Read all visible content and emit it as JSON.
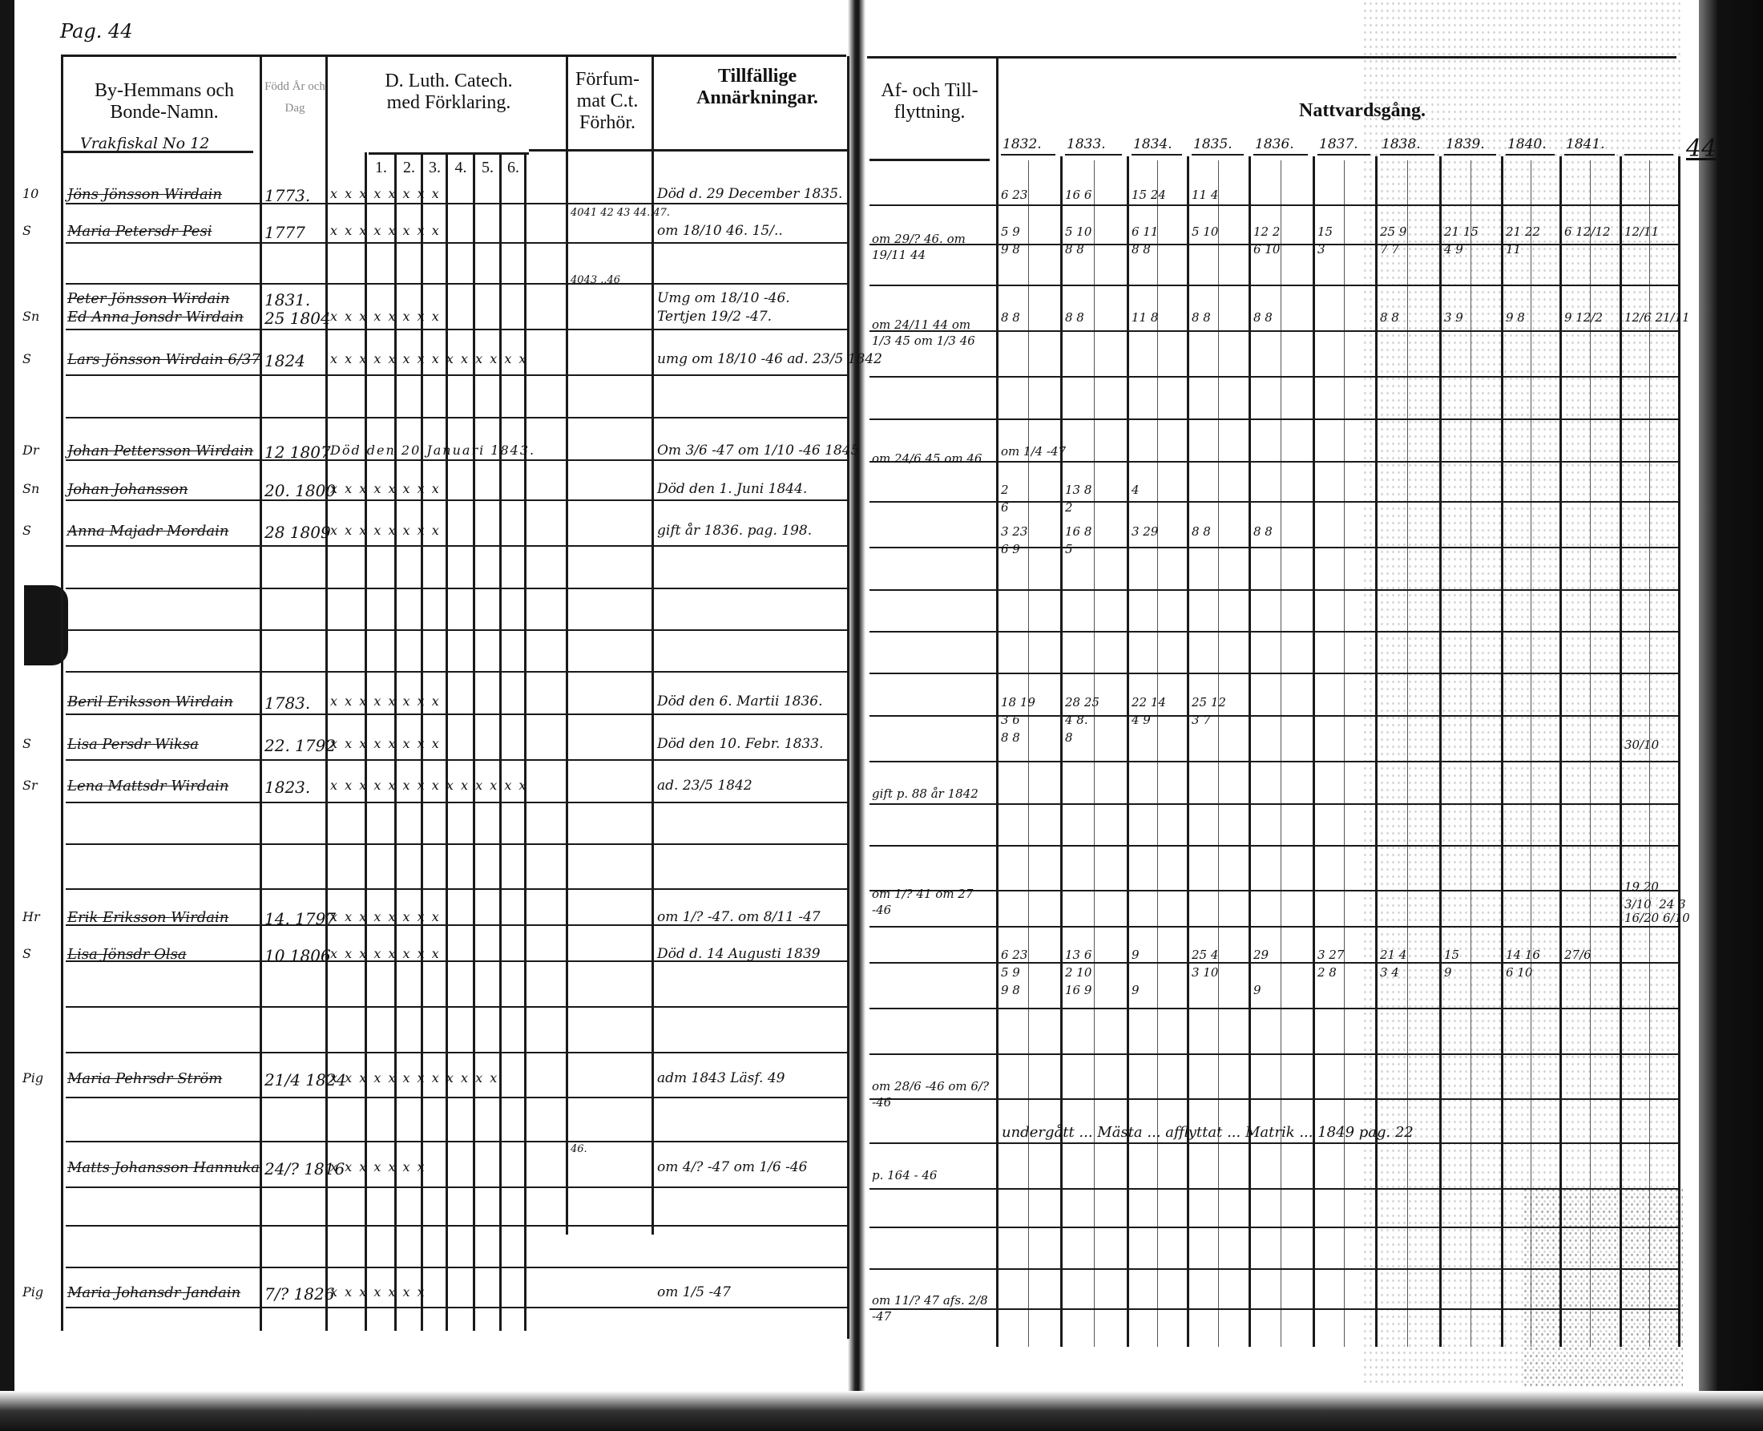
{
  "page": {
    "left_label": "Pag. 44",
    "right_number": "44"
  },
  "headers": {
    "name": "By-Hemmans och Bonde-Namn.",
    "born": "Född År och Dag",
    "catechism": "D. Luth. Catech. med Förklaring.",
    "catechism_parts": [
      "1.",
      "2.",
      "3.",
      "4.",
      "5.",
      "6."
    ],
    "examined": "Förfum-mat C.t. Förhör.",
    "remarks": "Tillfällige Annärkningar.",
    "moves": "Af- och Till-flyttning.",
    "communion": "Nattvardsgång.",
    "years": [
      "1832.",
      "1833.",
      "1834.",
      "1835.",
      "1836.",
      "1837.",
      "1838.",
      "1839.",
      "1840.",
      "1841.",
      ""
    ]
  },
  "section": {
    "label": "Vrakfiskal No 12"
  },
  "rows": [
    {
      "marker": "10",
      "name": "Jöns Jönsson Wirdain",
      "born": "1773.",
      "marks": "x x  x  x  x  x  x  x",
      "examined": "",
      "remarks": "Död d. 29 December 1835.",
      "moves": "",
      "communion": [
        "6 23",
        "16 6",
        "15 24",
        "11 4",
        "",
        "",
        "",
        "",
        "",
        "",
        ""
      ]
    },
    {
      "marker": "S",
      "name": "Maria Petersdr Pesi",
      "born": "1777",
      "marks": "x x  x  x  x  x  x  x",
      "examined": "4041 42 43 44..47.",
      "remarks": "om 18/10 46. 15/..",
      "moves": "om 29/? 46. om 19/11 44",
      "communion": [
        "5 9\n9 8",
        "5 10\n8 8",
        "6 11\n8 8",
        "5 10",
        "12 2\n6 10",
        "15\n3",
        "25 9\n7 7",
        "21 15\n4 9",
        "21 22\n11",
        "6 12/12",
        "12/11"
      ]
    },
    {
      "marker": "",
      "name": "Peter Jönsson Wirdain",
      "born": "1831.",
      "marks": "",
      "examined": "4043 ..46",
      "remarks": "Umg om 18/10 -46.",
      "moves": "",
      "communion": [
        "",
        "",
        "",
        "",
        "",
        "",
        "",
        "",
        "",
        "",
        ""
      ]
    },
    {
      "marker": "Sn",
      "name": "Ed Anna Jonsdr Wirdain",
      "born": "25 1804",
      "marks": "x x  x  x  x  x  x  x",
      "examined": "",
      "remarks": "Tertjen 19/2 -47.",
      "moves": "om 24/11 44  om 1/3 45  om 1/3 46",
      "communion": [
        "8 8",
        "8 8",
        "11 8",
        "8 8",
        "8 8",
        "",
        "8 8",
        "3 9",
        "9 8",
        "9 12/2",
        "12/6 21/11"
      ]
    },
    {
      "marker": "S",
      "name": "Lars Jönsson Wirdain 6/37",
      "born": "1824",
      "marks": "x x  x x  x x  x x  x x  x x  x x",
      "examined": "",
      "remarks": "umg om 18/10 -46  ad. 23/5 1842",
      "moves": "",
      "communion": [
        "",
        "",
        "",
        "",
        "",
        "",
        "",
        "",
        "",
        "",
        ""
      ]
    },
    {
      "marker": "Dr",
      "name": "Johan Pettersson Wirdain",
      "born": "12 1807",
      "marks": "Död den 20 Januari 1843.",
      "examined": "",
      "remarks": "Om 3/6 -47 om 1/10 -46 1845",
      "moves": "om 24/6 45  om 46",
      "communion": [
        "om 1/4 -47",
        "",
        "",
        "",
        "",
        "",
        "",
        "",
        "",
        "",
        ""
      ]
    },
    {
      "marker": "Sn",
      "name": "Johan Johansson",
      "born": "20. 1800",
      "marks": "x x  x  x  x  x  x  x",
      "examined": "",
      "remarks": "Död den 1. Juni 1844.",
      "moves": "",
      "communion": [
        "2\n6",
        "13 8\n2",
        "4",
        "",
        "",
        "",
        "",
        "",
        "",
        "",
        ""
      ]
    },
    {
      "marker": "S",
      "name": "Anna Majadr Mordain",
      "born": "28 1809",
      "marks": "x x  x  x  x  x  x  x",
      "examined": "",
      "remarks": "gift år 1836. pag. 198.",
      "moves": "",
      "communion": [
        "3 23\n6 9",
        "16 8\n5",
        "3 29",
        "8 8",
        "8 8",
        "",
        "",
        "",
        "",
        "",
        ""
      ]
    },
    {
      "marker": "",
      "name": "Beril Eriksson Wirdain",
      "born": "1783.",
      "marks": "x x  x  x  x  x  x  x",
      "examined": "",
      "remarks": "Död den 6. Martii 1836.",
      "moves": "",
      "communion": [
        "18 19\n3 6\n8 8",
        "28 25\n4 8.\n8",
        "22 14\n4 9",
        "25 12\n3 7",
        "",
        "",
        "",
        "",
        "",
        "",
        ""
      ]
    },
    {
      "marker": "S",
      "name": "Lisa Persdr Wiksa",
      "born": "22. 1792",
      "marks": "x x  x  x  x  x  x  x",
      "examined": "",
      "remarks": "Död den 10. Febr. 1833.",
      "moves": "",
      "communion": [
        "",
        "",
        "",
        "",
        "",
        "",
        "",
        "",
        "",
        "",
        "30/10"
      ]
    },
    {
      "marker": "Sr",
      "name": "Lena Mattsdr Wirdain",
      "born": "1823.",
      "marks": "x x  x x  x x  x x  x x  x x  x x",
      "examined": "",
      "remarks": "ad. 23/5 1842",
      "moves": "gift p. 88 år 1842",
      "communion": [
        "",
        "",
        "",
        "",
        "",
        "",
        "",
        "",
        "",
        "",
        ""
      ]
    },
    {
      "marker": "",
      "name": "",
      "born": "",
      "marks": "",
      "examined": "",
      "remarks": "",
      "moves": "om 1/? 41  om 27 -46",
      "communion": [
        "",
        "",
        "",
        "",
        "",
        "",
        "",
        "",
        "",
        "",
        "19 20\n3/10  24 3"
      ]
    },
    {
      "marker": "Hr",
      "name": "Erik Eriksson Wirdain",
      "born": "14. 1797",
      "marks": "x x  x  x  x  x  x  x",
      "examined": "",
      "remarks": "om 1/? -47.  om 8/11 -47",
      "moves": "",
      "communion": [
        "",
        "",
        "",
        "",
        "",
        "",
        "",
        "",
        "",
        "",
        "16/20 6/10"
      ]
    },
    {
      "marker": "S",
      "name": "Lisa Jönsdr Olsa",
      "born": "10 1806",
      "marks": "x x  x  x  x  x  x  x",
      "examined": "",
      "remarks": "Död d. 14 Augusti 1839",
      "moves": "",
      "communion": [
        "6 23\n5 9\n9 8",
        "13 6\n2 10\n16 9",
        "9\n\n9",
        "25 4\n3 10",
        "29\n\n9",
        "3 27\n2 8",
        "21 4\n3 4",
        "15\n9",
        "14 16\n6 10",
        "27/6",
        ""
      ]
    },
    {
      "marker": "Pig",
      "name": "Maria Pehrsdr Ström",
      "born": "21/4 1824",
      "marks": "x x  x x  x x  x x  x x  x x",
      "examined": "",
      "remarks": "adm 1843 Läsf. 49",
      "moves": "om 28/6 -46  om 6/? -46",
      "communion": [
        "",
        "",
        "",
        "",
        "",
        "",
        "",
        "",
        "",
        "",
        ""
      ]
    },
    {
      "marker": "",
      "name": "Matts Johansson Hannuka",
      "born": "24/? 1816",
      "marks": "x  x  x  x  x  x  x",
      "examined": "46.",
      "remarks": "om 4/? -47  om 1/6 -46",
      "moves": "p. 164 - 46",
      "communion": [
        "",
        "",
        "",
        "",
        "",
        "",
        "",
        "",
        "",
        "",
        ""
      ]
    },
    {
      "marker": "Pig",
      "name": "Maria Johansdr Jandain",
      "born": "7/? 1826",
      "marks": "x  x  x  x  x  x  x",
      "examined": "",
      "remarks": "om 1/5 -47",
      "moves": "om 11/? 47  afs. 2/8 -47",
      "communion": [
        "",
        "",
        "",
        "",
        "",
        "",
        "",
        "",
        "",
        "",
        ""
      ]
    }
  ],
  "long_note": "undergått ... Mästa ... afflyttat ... Matrik ... 1849 pag. 22"
}
